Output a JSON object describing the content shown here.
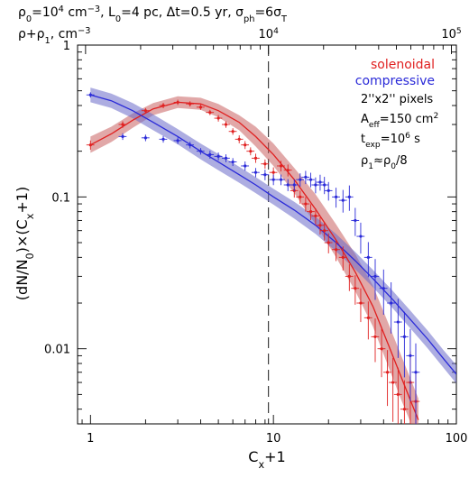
{
  "chart_data": {
    "type": "line",
    "header": {
      "line1": "ρ₀=10⁴ cm⁻³, L₀=4 pc, Δt=0.5 yr, σ_ph=6σ_T",
      "top_axis_label": "ρ+ρ₁, cm⁻³"
    },
    "xlabel": "Cₓ+1",
    "ylabel": "(dN/N₀)×(Cₓ+1)",
    "xscale": "log",
    "yscale": "log",
    "xlim": [
      0.85,
      100
    ],
    "ylim": [
      0.0032,
      1.0
    ],
    "x_ticks": [
      {
        "value": 1,
        "label": "1"
      },
      {
        "value": 10,
        "label": "10"
      },
      {
        "value": 100,
        "label": "100"
      }
    ],
    "y_ticks": [
      {
        "value": 0.01,
        "label": "0.01"
      },
      {
        "value": 0.1,
        "label": "0.1"
      },
      {
        "value": 1,
        "label": "1"
      }
    ],
    "top_ticks": [
      {
        "value": 9.4,
        "label": "10⁴"
      },
      {
        "value": 94,
        "label": "10⁵"
      }
    ],
    "vline_x": 9.4,
    "legend": {
      "placement": "top-right",
      "entries": [
        {
          "label": "solenoidal",
          "color": "#e02020"
        },
        {
          "label": "compressive",
          "color": "#2a2ad8"
        }
      ]
    },
    "annotations": [
      "2''x2'' pixels",
      "A_eff=150 cm²",
      "t_exp=10⁶ s",
      "ρ₁≈ρ₀/8"
    ],
    "series": [
      {
        "name": "solenoidal",
        "color": "#e02020",
        "band_color": "#c86060",
        "model": {
          "x": [
            1,
            1.3,
            1.7,
            2.2,
            3,
            4,
            5,
            6.5,
            8,
            10,
            13,
            17,
            22,
            28,
            35,
            42,
            50,
            56,
            62
          ],
          "y": [
            0.22,
            0.26,
            0.32,
            0.38,
            0.42,
            0.41,
            0.37,
            0.31,
            0.25,
            0.19,
            0.13,
            0.083,
            0.052,
            0.032,
            0.019,
            0.011,
            0.0065,
            0.0046,
            0.0034
          ],
          "band_lo": [
            0.195,
            0.23,
            0.285,
            0.345,
            0.385,
            0.375,
            0.335,
            0.275,
            0.215,
            0.16,
            0.106,
            0.066,
            0.04,
            0.024,
            0.014,
            0.0079,
            0.0046,
            0.0033,
            0.0024
          ],
          "band_hi": [
            0.25,
            0.29,
            0.355,
            0.415,
            0.46,
            0.45,
            0.41,
            0.345,
            0.29,
            0.225,
            0.155,
            0.104,
            0.066,
            0.042,
            0.026,
            0.0152,
            0.009,
            0.0064,
            0.0047
          ]
        },
        "points": {
          "x": [
            1,
            1.5,
            2,
            2.5,
            3,
            3.5,
            4,
            4.5,
            5,
            5.5,
            6,
            6.5,
            7,
            7.5,
            8,
            9,
            10,
            11,
            12,
            13,
            14,
            15,
            16,
            17,
            18,
            19,
            20,
            22,
            24,
            26,
            28,
            30,
            33,
            36,
            39,
            42,
            45,
            48,
            52,
            56,
            60
          ],
          "y": [
            0.22,
            0.3,
            0.37,
            0.4,
            0.42,
            0.41,
            0.39,
            0.36,
            0.33,
            0.3,
            0.27,
            0.24,
            0.22,
            0.2,
            0.18,
            0.165,
            0.145,
            0.16,
            0.15,
            0.11,
            0.1,
            0.09,
            0.08,
            0.075,
            0.065,
            0.06,
            0.05,
            0.045,
            0.04,
            0.03,
            0.025,
            0.02,
            0.016,
            0.012,
            0.01,
            0.007,
            0.006,
            0.005,
            0.004,
            0.006,
            0.0045
          ],
          "err_frac": [
            0.07,
            0.05,
            0.04,
            0.04,
            0.04,
            0.04,
            0.04,
            0.04,
            0.05,
            0.05,
            0.05,
            0.06,
            0.06,
            0.06,
            0.07,
            0.07,
            0.08,
            0.08,
            0.09,
            0.1,
            0.1,
            0.11,
            0.12,
            0.12,
            0.13,
            0.14,
            0.15,
            0.16,
            0.18,
            0.2,
            0.22,
            0.25,
            0.28,
            0.32,
            0.35,
            0.4,
            0.45,
            0.5,
            0.55,
            0.6,
            0.6
          ]
        }
      },
      {
        "name": "compressive",
        "color": "#2a2ad8",
        "band_color": "#6a6ac8",
        "model": {
          "x": [
            1,
            1.3,
            1.7,
            2.2,
            3,
            4,
            5,
            6.5,
            8,
            10,
            13,
            17,
            22,
            28,
            35,
            45,
            55,
            70,
            85,
            100
          ],
          "y": [
            0.47,
            0.43,
            0.37,
            0.31,
            0.25,
            0.2,
            0.17,
            0.14,
            0.12,
            0.1,
            0.082,
            0.065,
            0.05,
            0.038,
            0.029,
            0.021,
            0.016,
            0.0115,
            0.0086,
            0.0068
          ],
          "band_lo": [
            0.42,
            0.385,
            0.33,
            0.275,
            0.222,
            0.177,
            0.15,
            0.124,
            0.106,
            0.089,
            0.072,
            0.057,
            0.0438,
            0.0333,
            0.0254,
            0.0184,
            0.014,
            0.01,
            0.0075,
            0.0059
          ],
          "band_hi": [
            0.525,
            0.48,
            0.415,
            0.35,
            0.28,
            0.225,
            0.192,
            0.158,
            0.135,
            0.113,
            0.093,
            0.074,
            0.057,
            0.0434,
            0.0331,
            0.024,
            0.0183,
            0.0131,
            0.0098,
            0.0078
          ]
        },
        "points": {
          "x": [
            1,
            1.5,
            2,
            2.5,
            3,
            3.5,
            4,
            4.5,
            5,
            5.5,
            6,
            7,
            8,
            9,
            10,
            11,
            12,
            13,
            14,
            15,
            16,
            17,
            18,
            19,
            20,
            22,
            24,
            26,
            28,
            30,
            33,
            36,
            40,
            44,
            48,
            52,
            56,
            60
          ],
          "y": [
            0.47,
            0.25,
            0.245,
            0.24,
            0.235,
            0.22,
            0.2,
            0.19,
            0.185,
            0.18,
            0.17,
            0.16,
            0.145,
            0.14,
            0.13,
            0.13,
            0.12,
            0.12,
            0.13,
            0.135,
            0.13,
            0.12,
            0.125,
            0.12,
            0.11,
            0.1,
            0.095,
            0.1,
            0.07,
            0.055,
            0.04,
            0.03,
            0.025,
            0.02,
            0.015,
            0.012,
            0.009,
            0.007
          ],
          "err_frac": [
            0.04,
            0.05,
            0.05,
            0.05,
            0.05,
            0.05,
            0.05,
            0.06,
            0.06,
            0.06,
            0.06,
            0.07,
            0.07,
            0.08,
            0.08,
            0.08,
            0.09,
            0.09,
            0.1,
            0.1,
            0.11,
            0.12,
            0.12,
            0.13,
            0.14,
            0.15,
            0.17,
            0.19,
            0.21,
            0.23,
            0.26,
            0.3,
            0.33,
            0.37,
            0.42,
            0.46,
            0.5,
            0.55
          ]
        }
      }
    ]
  }
}
